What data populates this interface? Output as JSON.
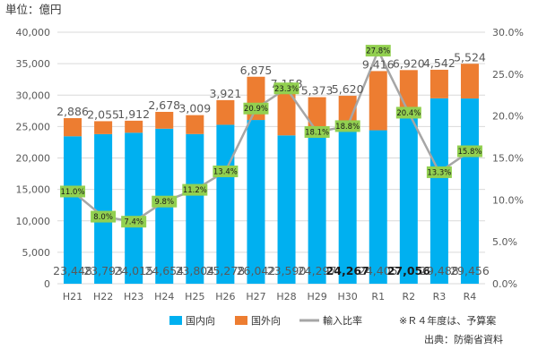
{
  "chart_data": {
    "type": "bar",
    "unit_label": "単位：億円",
    "categories": [
      "H21",
      "H22",
      "H23",
      "H24",
      "H25",
      "H26",
      "H27",
      "H28",
      "H29",
      "H30",
      "R1",
      "R2",
      "R3",
      "R4"
    ],
    "series": [
      {
        "name": "国内向",
        "type": "stacked-bar",
        "color": "#00B0F0",
        "values": [
          23448,
          23793,
          24015,
          24654,
          23804,
          25278,
          26042,
          23590,
          24297,
          24267,
          24405,
          27056,
          29488,
          29456
        ]
      },
      {
        "name": "国外向",
        "type": "stacked-bar",
        "color": "#ED7D31",
        "values": [
          2886,
          2055,
          1912,
          2678,
          3009,
          3921,
          6875,
          7158,
          5373,
          5620,
          9416,
          6920,
          4542,
          5524
        ]
      },
      {
        "name": "輸入比率",
        "type": "line",
        "axis": "right",
        "color": "#A6A6A6",
        "values": [
          11.0,
          8.0,
          7.4,
          9.8,
          11.2,
          13.4,
          20.9,
          23.3,
          18.1,
          18.8,
          27.8,
          20.4,
          13.3,
          15.8
        ],
        "labels": [
          "11.0%",
          "8.0%",
          "7.4%",
          "9.8%",
          "11.2%",
          "13.4%",
          "20.9%",
          "23.3%",
          "18.1%",
          "18.8%",
          "27.8%",
          "20.4%",
          "13.3%",
          "15.8%"
        ]
      }
    ],
    "domestic_labels": [
      "23,448",
      "23,793",
      "24,015",
      "24,654",
      "23,804",
      "25,278",
      "26,042",
      "23,590",
      "24,297",
      "24,267",
      "24,405",
      "27,056",
      "29,488",
      "29,456"
    ],
    "domestic_bold": [
      false,
      false,
      false,
      false,
      false,
      false,
      false,
      false,
      false,
      true,
      false,
      true,
      false,
      false
    ],
    "foreign_labels": [
      "2,886",
      "2,055",
      "1,912",
      "2,678",
      "3,009",
      "3,921",
      "6,875",
      "7,158",
      "5,373",
      "5,620",
      "9,416",
      "6,920",
      "4,542",
      "5,524"
    ],
    "left_axis": {
      "ylim": [
        0,
        40000
      ],
      "ticks": [
        "0",
        "5,000",
        "10,000",
        "15,000",
        "20,000",
        "25,000",
        "30,000",
        "35,000",
        "40,000"
      ]
    },
    "right_axis": {
      "ylim": [
        0,
        30
      ],
      "ticks": [
        "0.0%",
        "5.0%",
        "10.0%",
        "15.0%",
        "20.0%",
        "25.0%",
        "30.0%"
      ]
    },
    "legend": {
      "position": "bottom",
      "items": [
        "国内向",
        "国外向",
        "輸入比率"
      ]
    },
    "notes": [
      "※Ｒ４年度は、予算案",
      "出典：防衛省資料"
    ]
  },
  "colors": {
    "domestic": "#00B0F0",
    "foreign": "#ED7D31",
    "ratio_line": "#A6A6A6",
    "ratio_label_bg": "#92D050",
    "grid": "#D9D9D9"
  }
}
